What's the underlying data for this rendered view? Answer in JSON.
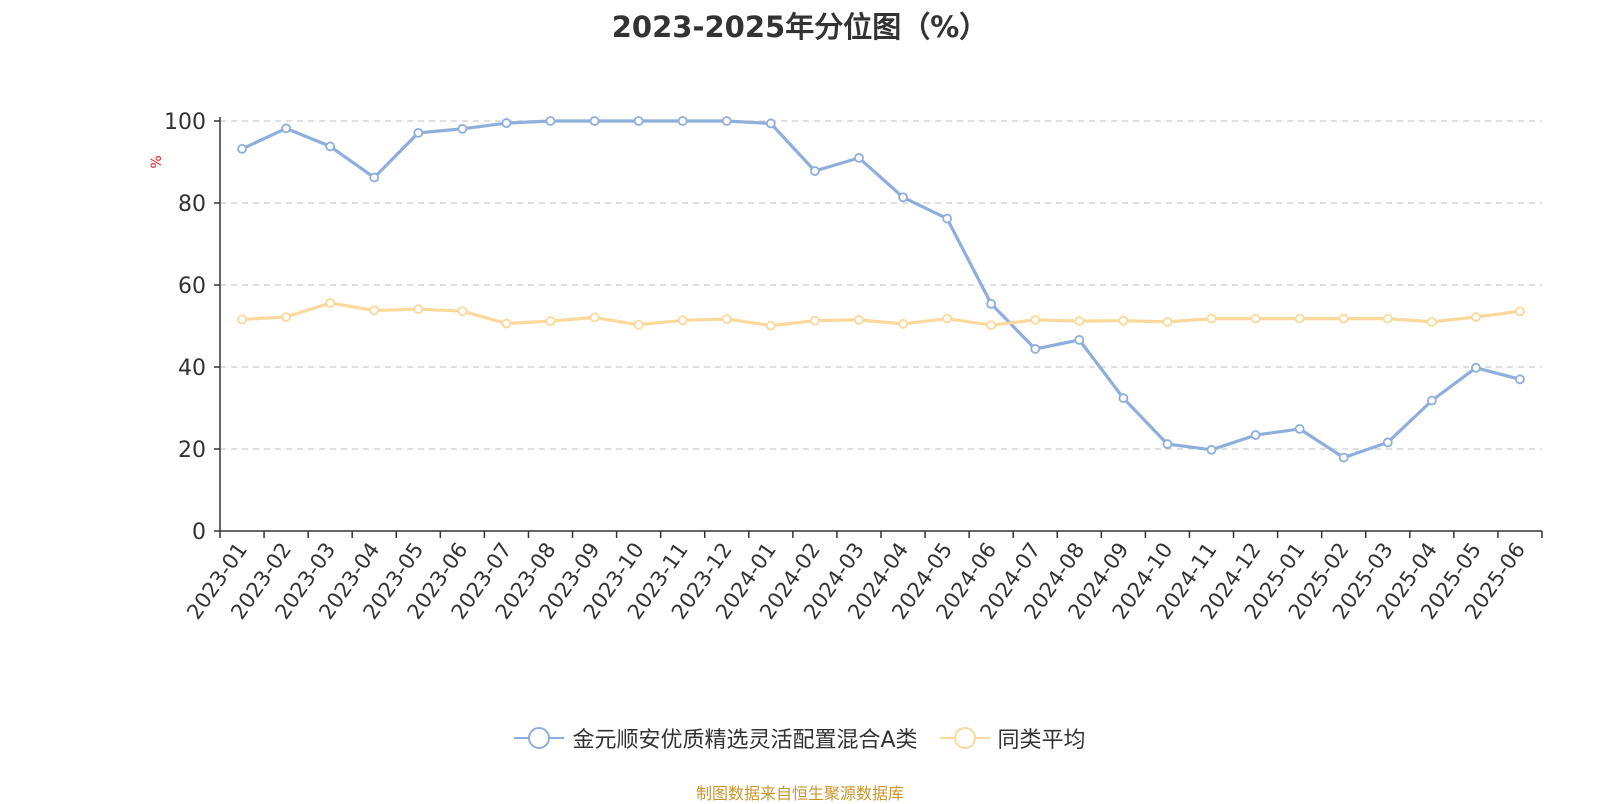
{
  "chart_data": {
    "type": "line",
    "title": "2023-2025年分位图（%）",
    "ylabel": "%",
    "xlabel": "",
    "ylim": [
      0,
      100
    ],
    "yticks": [
      0,
      20,
      40,
      60,
      80,
      100
    ],
    "grid": true,
    "legend_position": "bottom",
    "categories": [
      "2023-01",
      "2023-02",
      "2023-03",
      "2023-04",
      "2023-05",
      "2023-06",
      "2023-07",
      "2023-08",
      "2023-09",
      "2023-10",
      "2023-11",
      "2023-12",
      "2024-01",
      "2024-02",
      "2024-03",
      "2024-04",
      "2024-05",
      "2024-06",
      "2024-07",
      "2024-08",
      "2024-09",
      "2024-10",
      "2024-11",
      "2024-12",
      "2025-01",
      "2025-02",
      "2025-03",
      "2025-04",
      "2025-05",
      "2025-06"
    ],
    "series": [
      {
        "name": "金元顺安优质精选灵活配置混合A类",
        "color": "#8eaedb",
        "values": [
          93.2,
          98.2,
          93.8,
          86.2,
          97.1,
          98.1,
          99.5,
          100,
          100,
          100,
          100,
          100,
          99.4,
          87.8,
          91.0,
          81.4,
          76.2,
          55.4,
          44.4,
          46.6,
          32.4,
          21.2,
          19.8,
          23.4,
          24.9,
          17.9,
          21.6,
          31.8,
          39.8,
          37.0
        ]
      },
      {
        "name": "同类平均",
        "color": "#fbd89b",
        "values": [
          51.6,
          52.2,
          55.6,
          53.8,
          54.1,
          53.6,
          50.6,
          51.2,
          52.1,
          50.3,
          51.4,
          51.7,
          50.1,
          51.3,
          51.5,
          50.5,
          51.8,
          50.2,
          51.5,
          51.2,
          51.3,
          51.0,
          51.8,
          51.8,
          51.8,
          51.8,
          51.8,
          51.0,
          52.2,
          53.6
        ]
      }
    ]
  },
  "source_text": "制图数据来自恒生聚源数据库"
}
